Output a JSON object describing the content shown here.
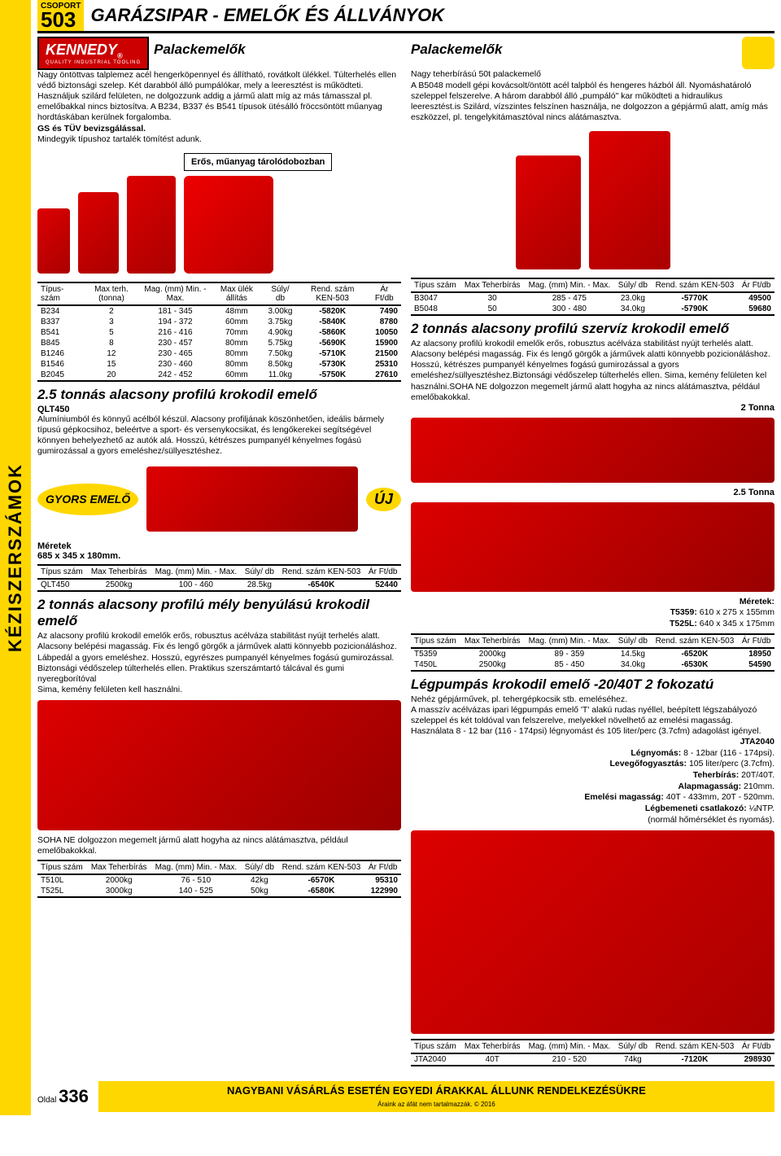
{
  "group": {
    "label": "CSOPORT",
    "number": "503"
  },
  "header_title": "GARÁZSIPAR - EMELŐK ÉS ÁLLVÁNYOK",
  "sidebar": "KÉZISZERSZÁMOK",
  "kennedy": {
    "name": "KENNEDY",
    "sub": "QUALITY INDUSTRIAL TOOLING"
  },
  "sec1": {
    "title": "Palackemelők",
    "text": "Nagy öntöttvas talplemez acél hengerköpennyel és állítható, rovátkolt ülékkel. Túlterhelés ellen védő biztonsági szelep. Két darabból álló pumpálókar, mely a leeresztést is működteti. Használjuk szilárd felületen, ne dolgozzunk addig a jármű alatt míg az más támasszal pl. emelőbakkal nincs biztosítva. A B234, B337 és B541 típusok ütésálló fröccsöntött műanyag hordtáskában kerülnek forgalomba.",
    "gs": "GS és TÜV bevizsgálással.",
    "spare": "Mindegyik típushoz tartalék tömítést adunk.",
    "caption": "Erős, műanyag tárolódobozban"
  },
  "sec2": {
    "title": "Palackemelők",
    "text": "Nagy teherbírású 50t palackemelő\nA B5048 modell gépi kovácsolt/öntött acél talpból és hengeres házból áll. Nyomáshatároló szeleppel felszerelve. A három darabból álló „pumpáló\" kar működteti a hidraulikus leeresztést.is Szilárd, vízszintes felszínen használja, ne dolgozzon a gépjármű alatt, amíg más eszközzel, pl. tengelykitámasztóval nincs alátámasztva."
  },
  "th": {
    "tipus": "Típus-\nszám",
    "tipus2": "Típus\nszám",
    "max_terh": "Max terh.\n(tonna)",
    "max_teh": "Max\nTeherbírás",
    "mag": "Mag. (mm)\nMin. - Max.",
    "ulek": "Max ülék\nállítás",
    "suly": "Súly/\ndb",
    "rend": "Rend. szám\nKEN-503",
    "ar": "Ár\nFt/db"
  },
  "t1": {
    "rows": [
      [
        "B234",
        "2",
        "181 - 345",
        "48mm",
        "3.00kg",
        "-5820K",
        "7490"
      ],
      [
        "B337",
        "3",
        "194 - 372",
        "60mm",
        "3.75kg",
        "-5840K",
        "8780"
      ],
      [
        "B541",
        "5",
        "216 - 416",
        "70mm",
        "4.90kg",
        "-5860K",
        "10050"
      ],
      [
        "B845",
        "8",
        "230 - 457",
        "80mm",
        "5.75kg",
        "-5690K",
        "15900"
      ],
      [
        "B1246",
        "12",
        "230 - 465",
        "80mm",
        "7.50kg",
        "-5710K",
        "21500"
      ],
      [
        "B1546",
        "15",
        "230 - 460",
        "80mm",
        "8.50kg",
        "-5730K",
        "25310"
      ],
      [
        "B2045",
        "20",
        "242 - 452",
        "60mm",
        "11.0kg",
        "-5750K",
        "27610"
      ]
    ]
  },
  "t2": {
    "rows": [
      [
        "B3047",
        "30",
        "285 - 475",
        "23.0kg",
        "-5770K",
        "49500"
      ],
      [
        "B5048",
        "50",
        "300 - 480",
        "34.0kg",
        "-5790K",
        "59680"
      ]
    ]
  },
  "sec3": {
    "title": "2 tonnás alacsony profilú szervíz krokodil emelő",
    "text": "Az alacsony profilú krokodil emelők erős, robusztus acélváza stabilitást nyújt terhelés alatt. Alacsony belépési magasság. Fix és lengő görgők a járművek alatti könnyebb pozicionáláshoz. Hosszú, kétrészes pumpanyél kényelmes fogású gumirozással a gyors emeléshez/süllyesztéshez.Biztonsági védőszelep túlterhelés ellen. Sima, kemény felületen kel használni.SOHA NE dolgozzon megemelt jármű alatt hogyha az nincs alátámasztva, például emelőbakokkal.",
    "label2t": "2 Tonna",
    "label25t": "2.5 Tonna",
    "dims_title": "Méretek:",
    "dim1": "T5359: 610 x 275 x 155mm",
    "dim2": "T525L: 640 x 345 x 175mm"
  },
  "t3": {
    "rows": [
      [
        "T5359",
        "2000kg",
        "89 - 359",
        "14.5kg",
        "-6520K",
        "18950"
      ],
      [
        "T450L",
        "2500kg",
        "85 - 450",
        "34.0kg",
        "-6530K",
        "54590"
      ]
    ]
  },
  "sec4": {
    "title": "2.5 tonnás alacsony profilú krokodil emelő",
    "model": "QLT450",
    "text": "Alumíniumból és könnyű acélból készül. Alacsony profiljának köszönhetően, ideális bármely típusú gépkocsihoz, beleértve a sport- és versenykocsikat, és lengőkerekei segítségével könnyen behelyezhető az autók alá. Hosszú, kétrészes pumpanyél kényelmes fogású gumirozással a gyors emeléshez/süllyesztéshez.",
    "uj": "ÚJ",
    "gyors": "GYORS\nEMELŐ",
    "dims": "Méretek\n685 x 345 x 180mm."
  },
  "t4": {
    "rows": [
      [
        "QLT450",
        "2500kg",
        "100 - 460",
        "28.5kg",
        "-6540K",
        "52440"
      ]
    ]
  },
  "sec5": {
    "title": "2 tonnás alacsony profilú mély benyúlású krokodil emelő",
    "text": "Az alacsony profilú krokodil emelők erős, robusztus acélváza stabilitást nyújt terhelés alatt. Alacsony belépési magasság. Fix és lengő görgők a járművek alatti könnyebb pozicionáláshoz. Lábpedál a gyors emeléshez. Hosszú, egyrészes pumpanyél kényelmes fogású gumirozással. Biztonsági védőszelep túlterhelés ellen. Praktikus szerszámtartó tálcával és gumi nyeregborítóval\nSima, kemény felületen kell használni.",
    "warn": "SOHA NE dolgozzon megemelt jármű alatt hogyha az nincs alátámasztva, például emelőbakokkal."
  },
  "t5": {
    "rows": [
      [
        "T510L",
        "2000kg",
        "76 - 510",
        "42kg",
        "-6570K",
        "95310"
      ],
      [
        "T525L",
        "3000kg",
        "140 - 525",
        "50kg",
        "-6580K",
        "122990"
      ]
    ]
  },
  "sec6": {
    "title": "Légpumpás krokodil emelő -20/40T 2 fokozatú",
    "text": "Nehéz gépjárművek, pl. tehergépkocsik stb. emeléséhez.\nA masszív acélvázas ipari légpumpás emelő 'T' alakú rudas nyéllel, beépített légszabályozó szeleppel és két toldóval van felszerelve, melyekkel növelhető az emelési magasság. Használata 8 - 12 bar (116 - 174psi) légnyomást és 105 liter/perc (3.7cfm) adagolást igényel.",
    "model": "JTA2040",
    "specs": [
      [
        "Légnyomás:",
        " 8 - 12bar (116 - 174psi)."
      ],
      [
        "Levegőfogyasztás:",
        " 105 liter/perc (3.7cfm)."
      ],
      [
        "Teherbírás:",
        " 20T/40T."
      ],
      [
        "Alapmagasság:",
        " 210mm."
      ],
      [
        "Emelési magasság:",
        "  40T - 433mm, 20T - 520mm."
      ],
      [
        "Légbemeneti csatlakozó:",
        " ¼NTP."
      ]
    ],
    "note": "(normál hőmérséklet és nyomás)."
  },
  "t6": {
    "rows": [
      [
        "JTA2040",
        "40T",
        "210 - 520",
        "74kg",
        "-7120K",
        "298930"
      ]
    ]
  },
  "footer": {
    "page_label": "Oldal",
    "page_num": "336",
    "banner": "NAGYBANI VÁSÁRLÁS ESETÉN EGYEDI ÁRAKKAL ÁLLUNK RENDELKEZÉSÜKRE",
    "sub": "Áraink az áfát nem tartalmazzák. © 2016"
  }
}
